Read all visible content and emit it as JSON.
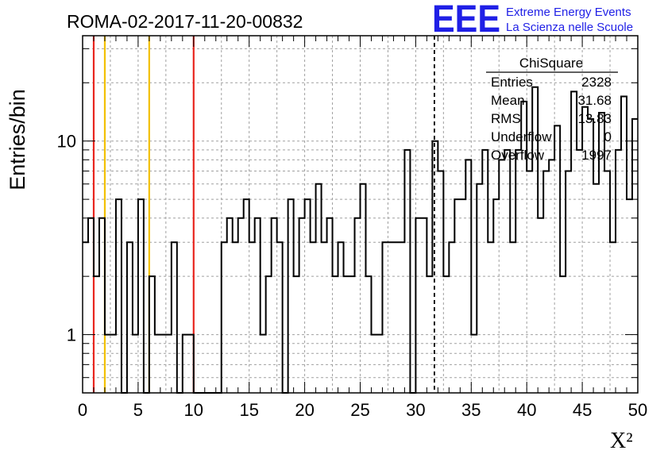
{
  "header": {
    "run_title": "ROMA-02-2017-11-20-00832",
    "logo_text": "EEE",
    "logo_line1": "Extreme Energy Events",
    "logo_line2": "La Scienza nelle Scuole"
  },
  "stats_box": {
    "title": "ChiSquare",
    "rows": [
      {
        "label": "Entries",
        "value": "2328"
      },
      {
        "label": "Mean",
        "value": "31.68"
      },
      {
        "label": "RMS",
        "value": "13.83"
      },
      {
        "label": "Underflow",
        "value": "0"
      },
      {
        "label": "Overflow",
        "value": "1997"
      }
    ]
  },
  "colors": {
    "histogram": "#000000",
    "red_line": "#e8251e",
    "yellow_line": "#f2c100",
    "logo": "#1f1fe6",
    "grid": "#a0a0a0"
  },
  "chart_data": {
    "type": "bar",
    "style": "step-histogram",
    "xlabel": "X²",
    "ylabel": "Entries/bin",
    "xlim": [
      0,
      50
    ],
    "ylim": [
      0.5,
      35
    ],
    "yscale": "log",
    "grid": true,
    "x_ticks": [
      "0",
      "5",
      "10",
      "15",
      "20",
      "25",
      "30",
      "35",
      "40",
      "45",
      "50"
    ],
    "y_ticks": [
      "1",
      "10"
    ],
    "bin_width": 0.5,
    "values": [
      3,
      4,
      2,
      4,
      1,
      1,
      5,
      0,
      3,
      1,
      5,
      0,
      2,
      1,
      1,
      1,
      3,
      0,
      1,
      1,
      0,
      0,
      0,
      0,
      0,
      3,
      4,
      3,
      4,
      5,
      3,
      4,
      1,
      2,
      4,
      3,
      0,
      5,
      2,
      4,
      5,
      3,
      6,
      3,
      4,
      2,
      3,
      2,
      2,
      4,
      6,
      2,
      1,
      1,
      3,
      3,
      3,
      3,
      9,
      0,
      4,
      4,
      2,
      10,
      7,
      2,
      3,
      5,
      5,
      8,
      1,
      6,
      9,
      3,
      5,
      8,
      9,
      3,
      9,
      16,
      7,
      19,
      4,
      7,
      8,
      12,
      2,
      7,
      18,
      9,
      15,
      13,
      6,
      14,
      7,
      3,
      9,
      17,
      5,
      13
    ],
    "vertical_lines": [
      {
        "x": 1,
        "color": "red"
      },
      {
        "x": 2,
        "color": "yellow"
      },
      {
        "x": 6,
        "color": "yellow"
      },
      {
        "x": 10,
        "color": "red"
      },
      {
        "x": 31.68,
        "style": "dashed",
        "color": "black"
      }
    ]
  }
}
